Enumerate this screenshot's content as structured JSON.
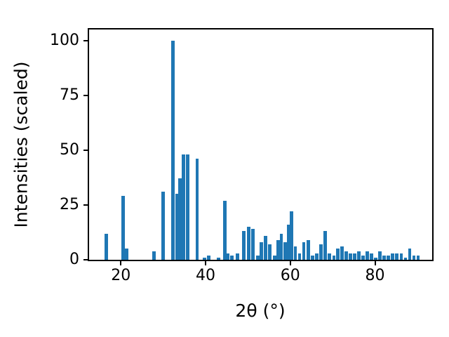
{
  "figure": {
    "background": "#ffffff",
    "spine_color": "#000000"
  },
  "chart_data": {
    "type": "bar",
    "title": "",
    "xlabel": "2θ (°)",
    "ylabel": "Intensities (scaled)",
    "legend": null,
    "grid": false,
    "xlim": [
      12.5,
      93.5
    ],
    "ylim": [
      0,
      105
    ],
    "xticks": [
      20,
      40,
      60,
      80
    ],
    "yticks": [
      0,
      25,
      50,
      75,
      100
    ],
    "bar_color": "#1f77b4",
    "bar_width_deg": 0.8,
    "x": [
      16.5,
      20.5,
      21.4,
      27.8,
      30.0,
      32.3,
      33.2,
      34.0,
      34.8,
      35.8,
      38.0,
      39.8,
      40.8,
      43.0,
      44.5,
      45.3,
      46.2,
      47.5,
      49.0,
      50.2,
      51.2,
      52.3,
      53.2,
      54.2,
      55.2,
      56.3,
      57.2,
      57.9,
      58.8,
      59.6,
      60.3,
      61.2,
      62.2,
      63.2,
      64.2,
      65.2,
      66.2,
      67.2,
      68.3,
      69.3,
      70.3,
      71.2,
      72.2,
      73.2,
      74.2,
      75.2,
      76.2,
      77.2,
      78.2,
      79.2,
      80.2,
      81.2,
      82.2,
      83.2,
      84.2,
      85.2,
      86.2,
      87.2,
      88.2,
      89.2,
      90.2
    ],
    "y": [
      12,
      29,
      5,
      4,
      31,
      100,
      30,
      37,
      48,
      48,
      46,
      1,
      2,
      1,
      27,
      3,
      2,
      3,
      13,
      15,
      14,
      2,
      8,
      11,
      7,
      2,
      9,
      12,
      8,
      16,
      22,
      6,
      3,
      8,
      9,
      2,
      3,
      7,
      13,
      3,
      2,
      5,
      6,
      4,
      3,
      3,
      4,
      2,
      4,
      3,
      1,
      4,
      2,
      2,
      3,
      3,
      3,
      1,
      5,
      2,
      2
    ]
  }
}
